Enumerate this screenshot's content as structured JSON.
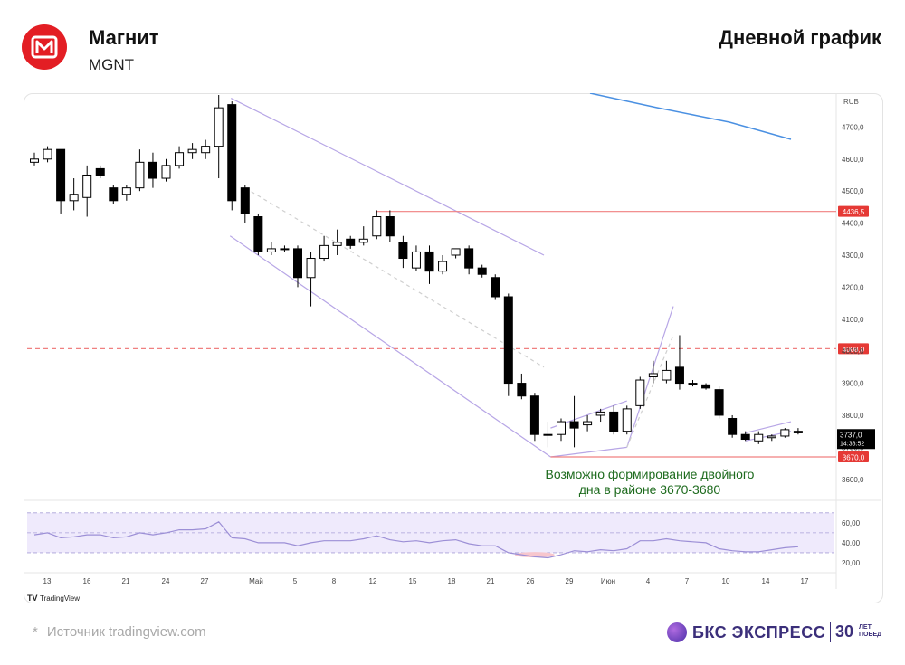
{
  "header": {
    "company": "Магнит",
    "ticker": "MGNT",
    "title": "Дневной график"
  },
  "footer": {
    "asterisk": "*",
    "source": "Источник tradingview.com",
    "brand": "БКС ЭКСПРЕСС",
    "brand_years": "30",
    "brand_small_1": "ЛЕТ",
    "brand_small_2": "ПОБЕД"
  },
  "colors": {
    "bull": "#ffffff",
    "bear": "#000000",
    "channel": "#b7a6e6",
    "support": "#f08080",
    "ma": "#4a90e2",
    "rsi_line": "#9c8fd6",
    "rsi_band": "#efeafc",
    "annotation": "#1e6b1e",
    "brand": "#3b2f7a"
  },
  "chart_data": {
    "type": "candlestick",
    "currency_label": "RUB",
    "ylim": [
      3540,
      4800
    ],
    "price_ticks": [
      "4700,0",
      "4600,0",
      "4500,0",
      "4400,0",
      "4300,0",
      "4200,0",
      "4100,0",
      "4000,0",
      "3900,0",
      "3800,0",
      "3700,0",
      "3600,0"
    ],
    "price_tick_values": [
      4700,
      4600,
      4500,
      4400,
      4300,
      4200,
      4100,
      4000,
      3900,
      3800,
      3700,
      3600
    ],
    "x_tick_labels": [
      "13",
      "16",
      "21",
      "24",
      "27",
      "Май",
      "5",
      "8",
      "12",
      "15",
      "18",
      "21",
      "26",
      "29",
      "Июн",
      "4",
      "7",
      "10",
      "14",
      "17"
    ],
    "candles": [
      {
        "o": 4590,
        "h": 4620,
        "l": 4580,
        "c": 4600
      },
      {
        "o": 4600,
        "h": 4640,
        "l": 4590,
        "c": 4630
      },
      {
        "o": 4630,
        "h": 4630,
        "l": 4430,
        "c": 4470
      },
      {
        "o": 4470,
        "h": 4540,
        "l": 4440,
        "c": 4490
      },
      {
        "o": 4480,
        "h": 4580,
        "l": 4420,
        "c": 4550
      },
      {
        "o": 4570,
        "h": 4580,
        "l": 4540,
        "c": 4550
      },
      {
        "o": 4510,
        "h": 4520,
        "l": 4460,
        "c": 4470
      },
      {
        "o": 4490,
        "h": 4520,
        "l": 4470,
        "c": 4510
      },
      {
        "o": 4510,
        "h": 4630,
        "l": 4500,
        "c": 4590
      },
      {
        "o": 4590,
        "h": 4620,
        "l": 4510,
        "c": 4540
      },
      {
        "o": 4540,
        "h": 4600,
        "l": 4530,
        "c": 4580
      },
      {
        "o": 4580,
        "h": 4640,
        "l": 4570,
        "c": 4620
      },
      {
        "o": 4620,
        "h": 4650,
        "l": 4600,
        "c": 4630
      },
      {
        "o": 4620,
        "h": 4660,
        "l": 4600,
        "c": 4640
      },
      {
        "o": 4640,
        "h": 4800,
        "l": 4540,
        "c": 4760
      },
      {
        "o": 4770,
        "h": 4780,
        "l": 4440,
        "c": 4470
      },
      {
        "o": 4510,
        "h": 4520,
        "l": 4400,
        "c": 4430
      },
      {
        "o": 4420,
        "h": 4430,
        "l": 4300,
        "c": 4310
      },
      {
        "o": 4310,
        "h": 4340,
        "l": 4300,
        "c": 4320
      },
      {
        "o": 4320,
        "h": 4330,
        "l": 4310,
        "c": 4318
      },
      {
        "o": 4320,
        "h": 4330,
        "l": 4200,
        "c": 4230
      },
      {
        "o": 4230,
        "h": 4310,
        "l": 4140,
        "c": 4290
      },
      {
        "o": 4290,
        "h": 4360,
        "l": 4280,
        "c": 4330
      },
      {
        "o": 4330,
        "h": 4380,
        "l": 4300,
        "c": 4340
      },
      {
        "o": 4350,
        "h": 4360,
        "l": 4320,
        "c": 4330
      },
      {
        "o": 4340,
        "h": 4390,
        "l": 4330,
        "c": 4350
      },
      {
        "o": 4360,
        "h": 4440,
        "l": 4350,
        "c": 4420
      },
      {
        "o": 4420,
        "h": 4440,
        "l": 4340,
        "c": 4360
      },
      {
        "o": 4340,
        "h": 4360,
        "l": 4260,
        "c": 4290
      },
      {
        "o": 4260,
        "h": 4330,
        "l": 4250,
        "c": 4310
      },
      {
        "o": 4310,
        "h": 4330,
        "l": 4210,
        "c": 4250
      },
      {
        "o": 4250,
        "h": 4300,
        "l": 4240,
        "c": 4280
      },
      {
        "o": 4300,
        "h": 4320,
        "l": 4290,
        "c": 4320
      },
      {
        "o": 4320,
        "h": 4330,
        "l": 4240,
        "c": 4260
      },
      {
        "o": 4260,
        "h": 4270,
        "l": 4230,
        "c": 4240
      },
      {
        "o": 4230,
        "h": 4240,
        "l": 4160,
        "c": 4170
      },
      {
        "o": 4170,
        "h": 4180,
        "l": 3860,
        "c": 3900
      },
      {
        "o": 3900,
        "h": 3930,
        "l": 3850,
        "c": 3860
      },
      {
        "o": 3860,
        "h": 3870,
        "l": 3720,
        "c": 3740
      },
      {
        "o": 3740,
        "h": 3780,
        "l": 3700,
        "c": 3740
      },
      {
        "o": 3740,
        "h": 3790,
        "l": 3720,
        "c": 3780
      },
      {
        "o": 3780,
        "h": 3860,
        "l": 3700,
        "c": 3760
      },
      {
        "o": 3770,
        "h": 3800,
        "l": 3750,
        "c": 3780
      },
      {
        "o": 3800,
        "h": 3820,
        "l": 3780,
        "c": 3810
      },
      {
        "o": 3810,
        "h": 3830,
        "l": 3740,
        "c": 3750
      },
      {
        "o": 3750,
        "h": 3830,
        "l": 3740,
        "c": 3820
      },
      {
        "o": 3830,
        "h": 3920,
        "l": 3820,
        "c": 3910
      },
      {
        "o": 3920,
        "h": 3970,
        "l": 3900,
        "c": 3930
      },
      {
        "o": 3910,
        "h": 3970,
        "l": 3900,
        "c": 3940
      },
      {
        "o": 3950,
        "h": 4050,
        "l": 3880,
        "c": 3900
      },
      {
        "o": 3900,
        "h": 3910,
        "l": 3890,
        "c": 3895
      },
      {
        "o": 3895,
        "h": 3900,
        "l": 3880,
        "c": 3885
      },
      {
        "o": 3880,
        "h": 3890,
        "l": 3790,
        "c": 3800
      },
      {
        "o": 3790,
        "h": 3800,
        "l": 3730,
        "c": 3740
      },
      {
        "o": 3740,
        "h": 3750,
        "l": 3720,
        "c": 3725
      },
      {
        "o": 3720,
        "h": 3750,
        "l": 3710,
        "c": 3740
      },
      {
        "o": 3730,
        "h": 3740,
        "l": 3720,
        "c": 3735
      },
      {
        "o": 3735,
        "h": 3760,
        "l": 3730,
        "c": 3755
      },
      {
        "o": 3745,
        "h": 3760,
        "l": 3740,
        "c": 3750
      }
    ],
    "current_price": "3737,0",
    "current_time": "14:38:52",
    "levels": [
      {
        "value": 4436.5,
        "label": "4436,5",
        "style": "solid"
      },
      {
        "value": 4008.0,
        "label": "4008,0",
        "style": "dashed"
      },
      {
        "value": 3670.0,
        "label": "3670,0",
        "style": "solid"
      }
    ],
    "annotation_line1": "Возможно формирование двойного",
    "annotation_line2": "дна в районе 3670-3680",
    "rsi": {
      "ticks": [
        "60,00",
        "40,00",
        "20,00"
      ],
      "tick_values": [
        60,
        40,
        20
      ],
      "upper": 70,
      "mid": 50,
      "lower": 30,
      "values": [
        48,
        50,
        45,
        46,
        48,
        48,
        45,
        46,
        50,
        48,
        50,
        53,
        53,
        54,
        61,
        45,
        44,
        40,
        40,
        40,
        37,
        40,
        42,
        42,
        42,
        44,
        47,
        43,
        41,
        42,
        40,
        42,
        43,
        39,
        37,
        37,
        30,
        28,
        26,
        25,
        28,
        32,
        31,
        33,
        32,
        34,
        42,
        42,
        44,
        42,
        41,
        40,
        34,
        32,
        31,
        31,
        33,
        35,
        36
      ]
    },
    "watermark": "TradingView"
  }
}
